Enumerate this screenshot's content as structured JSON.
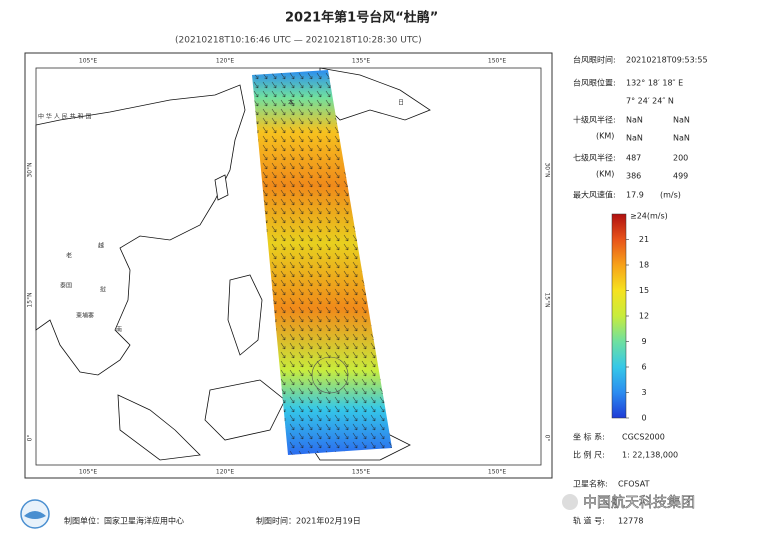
{
  "header": {
    "title": "2021年第1号台风“杜鹃”",
    "subtitle": "(20210218T10:16:46 UTC — 20210218T10:28:30 UTC)"
  },
  "map": {
    "lon_labels": [
      "105°E",
      "120°E",
      "135°E",
      "150°E"
    ],
    "lat_labels": [
      "30°N",
      "15°N",
      "0°"
    ],
    "places": [
      "中 华 人 民 共 和 国",
      "日",
      "本",
      "越",
      "南",
      "老",
      "挝",
      "泰国",
      "柬埔寨"
    ]
  },
  "info": {
    "eye_time": {
      "label": "台风眼时间:",
      "value": "20210218T09:53:55"
    },
    "eye_position": {
      "label": "台风眼位置:",
      "lon": "132° 18′ 18″ E",
      "lat": "7° 24′ 24″ N"
    },
    "r10": {
      "label": "十级风半径:",
      "unit": "(KM)",
      "values": [
        "NaN",
        "NaN",
        "NaN",
        "NaN"
      ]
    },
    "r7": {
      "label": "七级风半径:",
      "unit": "(KM)",
      "values": [
        "487",
        "200",
        "386",
        "499"
      ]
    },
    "max_wind": {
      "label": "最大风速值:",
      "value": "17.9",
      "unit": "(m/s)"
    }
  },
  "colorbar": {
    "top_label": "≥24(m/s)",
    "range": [
      0,
      24
    ],
    "ticks": [
      0,
      3,
      6,
      9,
      12,
      15,
      18,
      21
    ],
    "colors": [
      "#1f3bd6",
      "#2b8cf0",
      "#35c8e8",
      "#6fe0a0",
      "#c8ec3c",
      "#f6e21f",
      "#f7a21a",
      "#e8541a",
      "#b01010"
    ]
  },
  "meta": {
    "crs": {
      "label": "坐 标 系:",
      "value": "CGCS2000"
    },
    "scale": {
      "label": "比 例 尺:",
      "value": "1: 22,138,000"
    },
    "satellite": {
      "label": "卫星名称:",
      "value": "CFOSAT"
    },
    "orbit": {
      "label": "轨 道 号:",
      "value": "12778"
    }
  },
  "footer": {
    "unit": "制图单位：国家卫星海洋应用中心",
    "time": "制图时间：2021年02月19日",
    "watermark": "中国航天科技集团"
  }
}
